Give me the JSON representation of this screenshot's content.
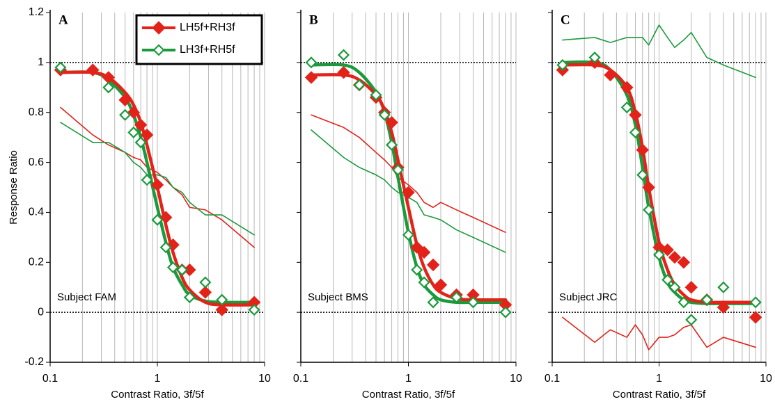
{
  "chart_data": [
    {
      "type": "scatter",
      "title": "A",
      "annotation": "Subject FAM",
      "x_label": "Contrast Ratio, 3f/5f",
      "y_label": "Response Ratio",
      "log_x": true,
      "xlim": [
        0.1,
        10
      ],
      "xticks": [
        0.1,
        1,
        10
      ],
      "x_minor_grid": [
        0.2,
        0.3,
        0.4,
        0.5,
        0.6,
        0.7,
        0.8,
        0.9,
        2,
        3,
        4,
        5,
        6,
        7,
        8,
        9
      ],
      "ylim": [
        -0.2,
        1.2
      ],
      "yticks": [
        -0.2,
        0,
        0.2,
        0.4,
        0.6,
        0.8,
        1,
        1.2
      ],
      "reference_lines": [
        0,
        1
      ],
      "legend": "top-right",
      "x": [
        0.125,
        0.25,
        0.35,
        0.5,
        0.6,
        0.7,
        0.8,
        1,
        1.2,
        1.4,
        1.7,
        2,
        2.8,
        4,
        8
      ],
      "series": [
        {
          "style": "thin",
          "color": "#e32219",
          "values": [
            0.82,
            0.71,
            0.67,
            0.64,
            0.62,
            0.61,
            0.58,
            0.56,
            0.53,
            0.5,
            0.47,
            0.42,
            0.41,
            0.37,
            0.26
          ]
        },
        {
          "style": "thin",
          "color": "#1b9a3c",
          "values": [
            0.76,
            0.68,
            0.68,
            0.64,
            0.6,
            0.58,
            0.55,
            0.55,
            0.54,
            0.5,
            0.48,
            0.44,
            0.39,
            0.39,
            0.31
          ]
        },
        {
          "style": "fit",
          "color": "#1b9a3c",
          "values": [
            0.96,
            0.96,
            0.93,
            0.86,
            0.79,
            0.7,
            0.6,
            0.42,
            0.28,
            0.18,
            0.11,
            0.07,
            0.045,
            0.04,
            0.04
          ]
        },
        {
          "style": "fit",
          "color": "#e32219",
          "values": [
            0.96,
            0.96,
            0.94,
            0.88,
            0.83,
            0.76,
            0.67,
            0.5,
            0.35,
            0.24,
            0.14,
            0.09,
            0.04,
            0.03,
            0.03
          ]
        },
        {
          "name": "LH5f+RH3f",
          "style": "filled",
          "color": "#e32219",
          "values": [
            0.97,
            0.97,
            0.94,
            0.85,
            0.8,
            0.75,
            0.71,
            0.51,
            0.38,
            0.27,
            0.17,
            0.17,
            0.08,
            0.01,
            0.04
          ]
        },
        {
          "name": "LH3f+RH5f",
          "style": "open",
          "color": "#1b9a3c",
          "values": [
            0.98,
            null,
            0.9,
            0.79,
            0.72,
            0.68,
            0.53,
            0.37,
            0.26,
            0.18,
            0.17,
            0.06,
            0.12,
            0.05,
            0.01
          ]
        }
      ]
    },
    {
      "type": "scatter",
      "title": "B",
      "annotation": "Subject BMS",
      "x_label": "Contrast Ratio, 3f/5f",
      "log_x": true,
      "xlim": [
        0.1,
        10
      ],
      "xticks": [
        0.1,
        1,
        10
      ],
      "ylim": [
        -0.2,
        1.2
      ],
      "reference_lines": [
        0,
        1
      ],
      "x": [
        0.125,
        0.25,
        0.35,
        0.5,
        0.6,
        0.7,
        0.8,
        1,
        1.2,
        1.4,
        1.7,
        2,
        2.8,
        4,
        8
      ],
      "series": [
        {
          "style": "thin",
          "color": "#e32219",
          "values": [
            0.79,
            0.74,
            0.7,
            0.64,
            0.61,
            0.58,
            0.54,
            0.51,
            0.48,
            0.44,
            0.42,
            0.44,
            0.41,
            0.38,
            0.32
          ]
        },
        {
          "style": "thin",
          "color": "#1b9a3c",
          "values": [
            0.73,
            0.62,
            0.58,
            0.55,
            0.53,
            0.5,
            0.48,
            0.46,
            0.44,
            0.39,
            0.38,
            0.37,
            0.33,
            0.3,
            0.24
          ]
        },
        {
          "style": "fit",
          "color": "#1b9a3c",
          "values": [
            0.99,
            0.99,
            0.96,
            0.88,
            0.8,
            0.68,
            0.54,
            0.32,
            0.18,
            0.11,
            0.07,
            0.05,
            0.04,
            0.04,
            0.04
          ]
        },
        {
          "style": "fit",
          "color": "#e32219",
          "values": [
            0.95,
            0.95,
            0.93,
            0.87,
            0.81,
            0.72,
            0.61,
            0.42,
            0.27,
            0.18,
            0.11,
            0.08,
            0.055,
            0.05,
            0.05
          ]
        },
        {
          "style": "filled",
          "color": "#e32219",
          "values": [
            0.94,
            0.96,
            0.91,
            0.86,
            0.8,
            0.76,
            0.58,
            0.48,
            0.26,
            0.24,
            0.19,
            0.11,
            0.07,
            0.07,
            0.03
          ]
        },
        {
          "style": "open",
          "color": "#1b9a3c",
          "values": [
            1.0,
            1.03,
            0.91,
            0.87,
            0.79,
            0.67,
            0.57,
            0.31,
            0.17,
            0.12,
            0.04,
            null,
            0.06,
            0.04,
            0.0
          ]
        }
      ]
    },
    {
      "type": "scatter",
      "title": "C",
      "annotation": "Subject JRC",
      "x_label": "Contrast Ratio, 3f/5f",
      "log_x": true,
      "xlim": [
        0.1,
        10
      ],
      "xticks": [
        0.1,
        1,
        10
      ],
      "ylim": [
        -0.2,
        1.2
      ],
      "reference_lines": [
        0,
        1
      ],
      "x": [
        0.125,
        0.25,
        0.35,
        0.5,
        0.6,
        0.7,
        0.8,
        1,
        1.2,
        1.4,
        1.7,
        2,
        2.8,
        4,
        8
      ],
      "series": [
        {
          "style": "thin",
          "color": "#e32219",
          "values": [
            -0.02,
            -0.12,
            -0.07,
            -0.1,
            -0.05,
            -0.09,
            -0.15,
            -0.1,
            -0.1,
            -0.09,
            -0.06,
            -0.05,
            -0.14,
            -0.1,
            -0.14
          ]
        },
        {
          "style": "thin",
          "color": "#1b9a3c",
          "values": [
            1.09,
            1.1,
            1.08,
            1.1,
            1.1,
            1.1,
            1.07,
            1.15,
            1.1,
            1.06,
            1.09,
            1.12,
            1.02,
            0.99,
            0.94
          ]
        },
        {
          "style": "fit",
          "color": "#1b9a3c",
          "values": [
            1.0,
            1.0,
            0.97,
            0.87,
            0.75,
            0.58,
            0.42,
            0.22,
            0.12,
            0.08,
            0.05,
            0.04,
            0.035,
            0.035,
            0.035
          ]
        },
        {
          "style": "fit",
          "color": "#e32219",
          "values": [
            0.99,
            0.99,
            0.97,
            0.9,
            0.8,
            0.66,
            0.5,
            0.28,
            0.17,
            0.11,
            0.07,
            0.05,
            0.04,
            0.04,
            0.04
          ]
        },
        {
          "style": "filled",
          "color": "#e32219",
          "values": [
            0.97,
            1.0,
            0.95,
            0.9,
            0.79,
            0.65,
            0.5,
            0.26,
            0.25,
            0.22,
            0.2,
            0.1,
            0.05,
            0.02,
            -0.02
          ]
        },
        {
          "style": "open",
          "color": "#1b9a3c",
          "values": [
            0.99,
            1.02,
            null,
            0.82,
            0.72,
            0.55,
            0.41,
            0.23,
            0.13,
            0.1,
            0.04,
            -0.03,
            0.05,
            0.1,
            0.04
          ]
        }
      ]
    }
  ]
}
